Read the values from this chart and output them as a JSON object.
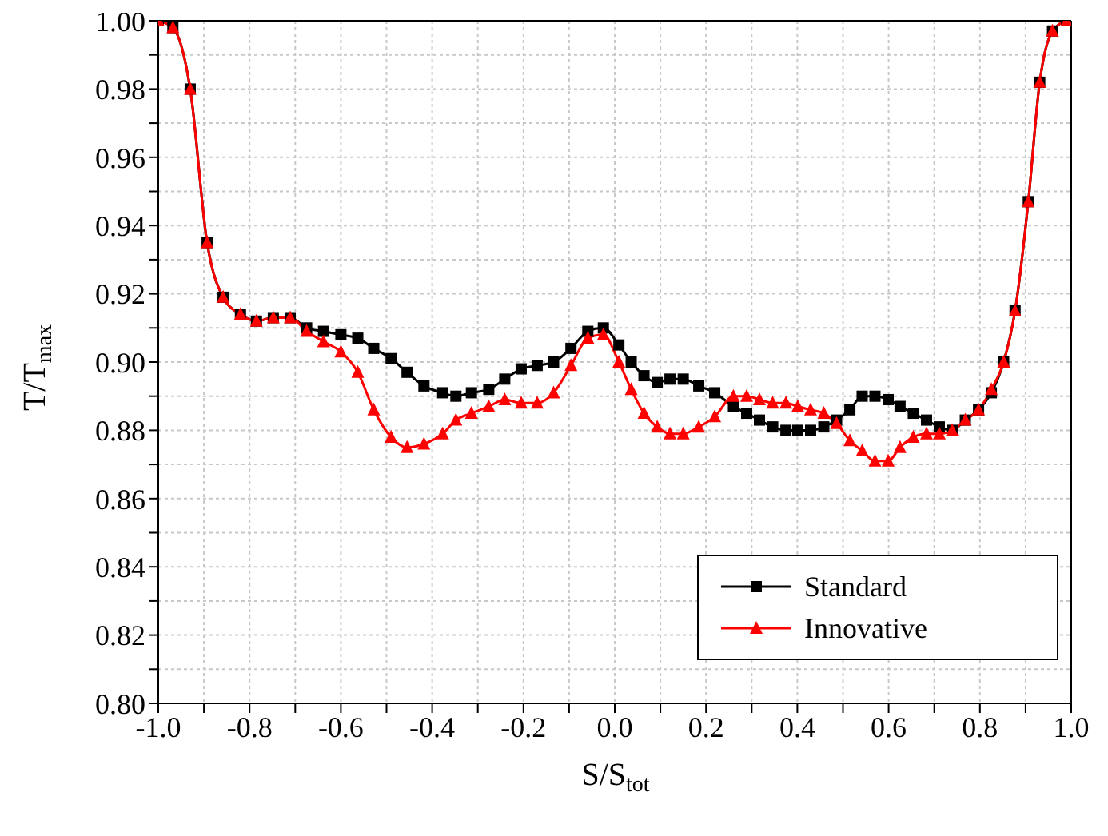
{
  "chart_data": {
    "type": "line",
    "xlabel": "S/S$_{tot}$",
    "ylabel": "T/T$_{max}$",
    "x": [
      -1.0,
      -0.968,
      -0.93,
      -0.893,
      -0.858,
      -0.82,
      -0.785,
      -0.748,
      -0.711,
      -0.675,
      -0.638,
      -0.6,
      -0.563,
      -0.528,
      -0.49,
      -0.455,
      -0.418,
      -0.377,
      -0.348,
      -0.314,
      -0.276,
      -0.241,
      -0.205,
      -0.17,
      -0.134,
      -0.096,
      -0.059,
      -0.025,
      0.009,
      0.036,
      0.064,
      0.093,
      0.121,
      0.15,
      0.184,
      0.219,
      0.26,
      0.289,
      0.317,
      0.346,
      0.375,
      0.401,
      0.429,
      0.458,
      0.486,
      0.515,
      0.542,
      0.57,
      0.599,
      0.625,
      0.654,
      0.683,
      0.711,
      0.739,
      0.768,
      0.797,
      0.825,
      0.852,
      0.877,
      0.906,
      0.931,
      0.959,
      0.99
    ],
    "series": [
      {
        "name": "Standard",
        "color": "#000000",
        "marker": "square",
        "values": [
          1.0,
          0.998,
          0.98,
          0.935,
          0.919,
          0.914,
          0.912,
          0.913,
          0.913,
          0.91,
          0.909,
          0.908,
          0.907,
          0.904,
          0.901,
          0.897,
          0.893,
          0.891,
          0.89,
          0.891,
          0.892,
          0.895,
          0.898,
          0.899,
          0.9,
          0.904,
          0.909,
          0.91,
          0.905,
          0.9,
          0.896,
          0.894,
          0.895,
          0.895,
          0.893,
          0.891,
          0.887,
          0.885,
          0.883,
          0.881,
          0.88,
          0.88,
          0.88,
          0.881,
          0.883,
          0.886,
          0.89,
          0.89,
          0.889,
          0.887,
          0.885,
          0.883,
          0.881,
          0.88,
          0.883,
          0.886,
          0.891,
          0.9,
          0.915,
          0.947,
          0.982,
          0.997,
          1.0
        ]
      },
      {
        "name": "Innovative",
        "color": "#ff0000",
        "marker": "triangle",
        "values": [
          1.0,
          0.998,
          0.98,
          0.935,
          0.919,
          0.914,
          0.912,
          0.913,
          0.913,
          0.909,
          0.906,
          0.903,
          0.897,
          0.886,
          0.878,
          0.875,
          0.876,
          0.879,
          0.883,
          0.885,
          0.887,
          0.889,
          0.888,
          0.888,
          0.891,
          0.899,
          0.907,
          0.908,
          0.9,
          0.892,
          0.885,
          0.881,
          0.879,
          0.879,
          0.881,
          0.884,
          0.89,
          0.89,
          0.889,
          0.888,
          0.888,
          0.887,
          0.886,
          0.885,
          0.882,
          0.877,
          0.874,
          0.871,
          0.871,
          0.875,
          0.878,
          0.879,
          0.879,
          0.88,
          0.883,
          0.886,
          0.892,
          0.9,
          0.915,
          0.947,
          0.982,
          0.997,
          1.0
        ]
      }
    ],
    "xlim": [
      -1.0,
      1.0
    ],
    "xticks": [
      {
        "value": -1.0,
        "label": "-1.0"
      },
      {
        "value": -0.9,
        "label": null
      },
      {
        "value": -0.8,
        "label": "-0.8"
      },
      {
        "value": -0.7,
        "label": null
      },
      {
        "value": -0.6,
        "label": "-0.6"
      },
      {
        "value": -0.5,
        "label": null
      },
      {
        "value": -0.4,
        "label": "-0.4"
      },
      {
        "value": -0.3,
        "label": null
      },
      {
        "value": -0.2,
        "label": "-0.2"
      },
      {
        "value": -0.1,
        "label": null
      },
      {
        "value": 0,
        "label": "0.0"
      },
      {
        "value": 0.1,
        "label": null
      },
      {
        "value": 0.2,
        "label": "0.2"
      },
      {
        "value": 0.3,
        "label": null
      },
      {
        "value": 0.4,
        "label": "0.4"
      },
      {
        "value": 0.5,
        "label": null
      },
      {
        "value": 0.6,
        "label": "0.6"
      },
      {
        "value": 0.7,
        "label": null
      },
      {
        "value": 0.8,
        "label": "0.8"
      },
      {
        "value": 0.9,
        "label": null
      },
      {
        "value": 1.0,
        "label": "1.0"
      }
    ],
    "ylim": [
      0.8,
      1.0
    ],
    "yticks": [
      {
        "value": 0.8,
        "label": "0.80"
      },
      {
        "value": 0.81,
        "label": null
      },
      {
        "value": 0.82,
        "label": "0.82"
      },
      {
        "value": 0.83,
        "label": null
      },
      {
        "value": 0.84,
        "label": "0.84"
      },
      {
        "value": 0.85,
        "label": null
      },
      {
        "value": 0.86,
        "label": "0.86"
      },
      {
        "value": 0.87,
        "label": null
      },
      {
        "value": 0.88,
        "label": "0.88"
      },
      {
        "value": 0.89,
        "label": null
      },
      {
        "value": 0.9,
        "label": "0.90"
      },
      {
        "value": 0.91,
        "label": null
      },
      {
        "value": 0.92,
        "label": "0.92"
      },
      {
        "value": 0.93,
        "label": null
      },
      {
        "value": 0.94,
        "label": "0.94"
      },
      {
        "value": 0.95,
        "label": null
      },
      {
        "value": 0.96,
        "label": "0.96"
      },
      {
        "value": 0.97,
        "label": null
      },
      {
        "value": 0.98,
        "label": "0.98"
      },
      {
        "value": 0.99,
        "label": null
      },
      {
        "value": 1.0,
        "label": "1.00"
      }
    ],
    "grid": true,
    "legend": "bottom right",
    "line_style": "solid"
  }
}
